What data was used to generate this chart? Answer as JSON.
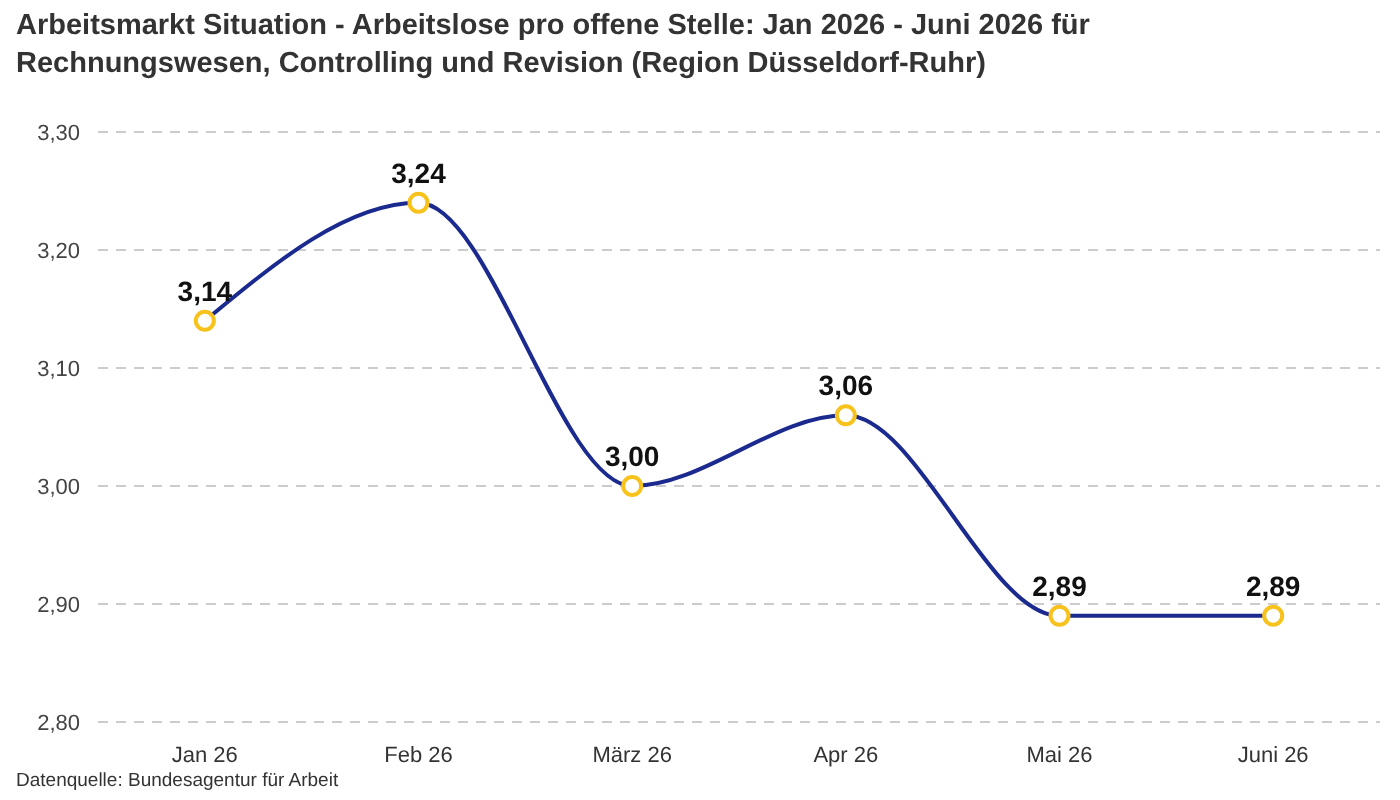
{
  "chart_data": {
    "type": "line",
    "title": "Arbeitsmarkt Situation - Arbeitslose pro offene Stelle: Jan 2026 - Juni 2026 für Rechnungswesen, Controlling und Revision (Region Düsseldorf-Ruhr)",
    "categories": [
      "Jan 26",
      "Feb 26",
      "März 26",
      "Apr 26",
      "Mai 26",
      "Juni 26"
    ],
    "series": [
      {
        "color": "#1b2a8e",
        "values": [
          3.14,
          3.24,
          3.0,
          3.06,
          2.89,
          2.89
        ],
        "value_labels": [
          "3,14",
          "3,24",
          "3,00",
          "3,06",
          "2,89",
          "2,89"
        ]
      }
    ],
    "ylim": [
      2.8,
      3.3
    ],
    "yticks": [
      {
        "value": 2.8,
        "label": "2,80"
      },
      {
        "value": 2.9,
        "label": "2,90"
      },
      {
        "value": 3.0,
        "label": "3,00"
      },
      {
        "value": 3.1,
        "label": "3,10"
      },
      {
        "value": 3.2,
        "label": "3,20"
      },
      {
        "value": 3.3,
        "label": "3,30"
      }
    ],
    "grid": "y",
    "marker": "circle",
    "line_style": "solid",
    "annotations": [
      "Datenquelle: Bundesagentur für Arbeit"
    ]
  }
}
